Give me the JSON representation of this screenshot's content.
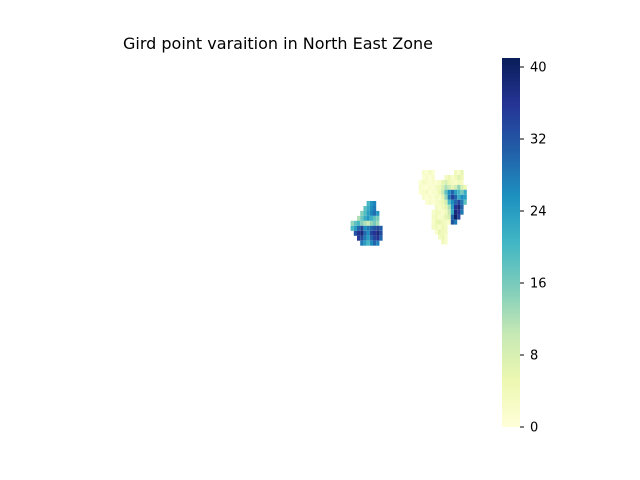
{
  "chart_data": {
    "type": "heatmap",
    "title": "Gird point varaition in North East Zone",
    "xlabel": "",
    "ylabel": "",
    "axes_visible": false,
    "grid": false,
    "colormap": "YlGnBu",
    "colors": {
      "low": "#ffffd9",
      "stops": [
        "#ffffd9",
        "#edf8b1",
        "#c7e9b4",
        "#7fcdbb",
        "#41b6c4",
        "#1d91c0",
        "#225ea8",
        "#253494",
        "#081d58"
      ]
    },
    "colorbar": {
      "min": 0,
      "max": 41,
      "ticks": [
        0,
        8,
        16,
        24,
        32,
        40
      ],
      "tick_labels": [
        "0",
        "8",
        "16",
        "24",
        "32",
        "40"
      ],
      "placement": "right"
    },
    "regions": [
      {
        "rows": [
          {
            "row": 0,
            "cols": [
              13,
              14,
              15
            ],
            "values": [
              20,
              25,
              27
            ]
          },
          {
            "row": 1,
            "cols": [
              12,
              13,
              14,
              15
            ],
            "values": [
              18,
              22,
              26,
              28
            ]
          },
          {
            "row": 2,
            "cols": [
              11,
              12,
              13,
              14,
              15,
              16
            ],
            "values": [
              15,
              19,
              24,
              27,
              29,
              25
            ]
          },
          {
            "row": 3,
            "cols": [
              10,
              11,
              12,
              13,
              14,
              15,
              16
            ],
            "values": [
              12,
              17,
              22,
              25,
              21,
              18,
              16
            ]
          },
          {
            "row": 4,
            "cols": [
              8,
              9,
              10,
              11,
              12,
              13,
              14,
              15,
              16
            ],
            "values": [
              14,
              18,
              20,
              15,
              12,
              10,
              14,
              16,
              13
            ]
          },
          {
            "row": 5,
            "cols": [
              8,
              9,
              10,
              11,
              12,
              13,
              14,
              15,
              16,
              17
            ],
            "values": [
              20,
              24,
              30,
              34,
              26,
              28,
              30,
              32,
              34,
              31
            ]
          },
          {
            "row": 6,
            "cols": [
              9,
              10,
              11,
              12,
              13,
              14,
              15,
              16,
              17
            ],
            "values": [
              32,
              36,
              38,
              30,
              26,
              34,
              36,
              38,
              33
            ]
          },
          {
            "row": 7,
            "cols": [
              10,
              11,
              12,
              13,
              14,
              15,
              16,
              17
            ],
            "values": [
              35,
              33,
              28,
              24,
              30,
              34,
              36,
              30
            ]
          },
          {
            "row": 8,
            "cols": [
              11,
              12,
              13,
              14,
              15,
              16
            ],
            "values": [
              28,
              24,
              20,
              26,
              30,
              27
            ]
          }
        ]
      },
      {
        "rows": [
          {
            "row": 0,
            "cols": [
              35,
              36,
              37,
              38,
              45,
              46,
              47
            ],
            "values": [
              2,
              1,
              3,
              1,
              4,
              2,
              6
            ]
          },
          {
            "row": 1,
            "cols": [
              35,
              36,
              37,
              38,
              42,
              43,
              44,
              45,
              46,
              47
            ],
            "values": [
              1,
              2,
              1,
              2,
              3,
              5,
              2,
              4,
              7,
              5
            ]
          },
          {
            "row": 2,
            "cols": [
              34,
              35,
              36,
              37,
              38,
              39,
              40,
              41,
              42,
              43,
              44,
              45,
              46,
              47
            ],
            "values": [
              1,
              3,
              2,
              1,
              2,
              1,
              2,
              6,
              8,
              5,
              3,
              2,
              4,
              3
            ]
          },
          {
            "row": 3,
            "cols": [
              34,
              35,
              36,
              37,
              38,
              39,
              40,
              41,
              42,
              43,
              44,
              45,
              46,
              47,
              48
            ],
            "values": [
              2,
              1,
              1,
              2,
              1,
              3,
              4,
              8,
              12,
              10,
              6,
              9,
              14,
              8,
              5
            ]
          },
          {
            "row": 4,
            "cols": [
              34,
              35,
              36,
              37,
              38,
              39,
              40,
              41,
              42,
              43,
              44,
              45,
              46,
              47,
              48
            ],
            "values": [
              1,
              2,
              3,
              1,
              2,
              2,
              5,
              10,
              18,
              26,
              30,
              24,
              20,
              16,
              22
            ]
          },
          {
            "row": 5,
            "cols": [
              35,
              36,
              37,
              38,
              39,
              40,
              41,
              42,
              43,
              44,
              45,
              46,
              47,
              48
            ],
            "values": [
              2,
              1,
              2,
              1,
              3,
              2,
              6,
              14,
              28,
              34,
              30,
              22,
              26,
              24
            ]
          },
          {
            "row": 6,
            "cols": [
              36,
              37,
              38,
              39,
              40,
              41,
              42,
              43,
              44,
              45,
              46,
              47,
              48
            ],
            "values": [
              1,
              2,
              1,
              2,
              3,
              5,
              9,
              20,
              26,
              30,
              34,
              28,
              18
            ]
          },
          {
            "row": 7,
            "cols": [
              39,
              40,
              41,
              42,
              43,
              44,
              45,
              46,
              47
            ],
            "values": [
              3,
              2,
              4,
              6,
              12,
              24,
              36,
              38,
              30
            ]
          },
          {
            "row": 8,
            "cols": [
              38,
              39,
              40,
              41,
              42,
              43,
              44,
              45,
              46,
              47
            ],
            "values": [
              2,
              4,
              3,
              2,
              4,
              10,
              22,
              38,
              36,
              28
            ]
          },
          {
            "row": 9,
            "cols": [
              38,
              39,
              40,
              41,
              42,
              43,
              44,
              45,
              46
            ],
            "values": [
              3,
              4,
              2,
              3,
              6,
              8,
              30,
              40,
              34
            ]
          },
          {
            "row": 10,
            "cols": [
              38,
              39,
              40,
              41,
              42,
              43,
              44,
              45
            ],
            "values": [
              2,
              5,
              6,
              4,
              3,
              2,
              32,
              28
            ]
          },
          {
            "row": 11,
            "cols": [
              38,
              39,
              40,
              41,
              42
            ],
            "values": [
              3,
              4,
              2,
              5,
              3
            ]
          },
          {
            "row": 12,
            "cols": [
              39,
              40,
              41,
              42
            ],
            "values": [
              2,
              6,
              4,
              3
            ]
          },
          {
            "row": 13,
            "cols": [
              40,
              41,
              42
            ],
            "values": [
              3,
              5,
              2
            ]
          },
          {
            "row": 14,
            "cols": [
              41,
              42
            ],
            "values": [
              4,
              2
            ]
          }
        ]
      }
    ]
  }
}
